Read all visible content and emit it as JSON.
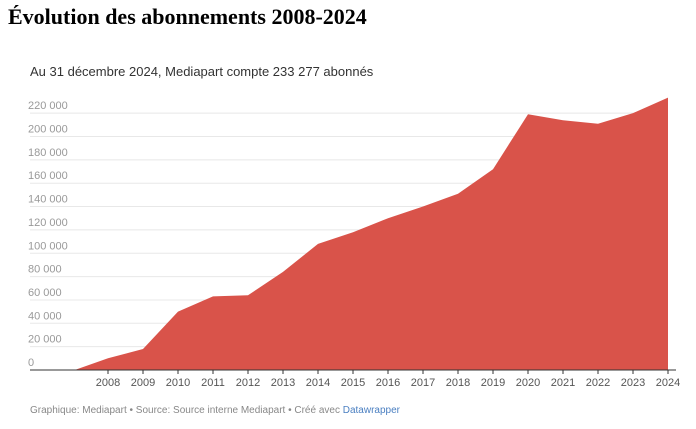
{
  "title": "Évolution des abonnements 2008-2024",
  "subtitle": "Au 31 décembre 2024, Mediapart compte 233 277 abonnés",
  "footer": {
    "text": "Graphique: Mediapart • Source: Source interne Mediapart • Créé avec ",
    "link": "Datawrapper"
  },
  "chart_data": {
    "type": "area",
    "title": "Évolution des abonnements 2008-2024",
    "subtitle": "Au 31 décembre 2024, Mediapart compte 233 277 abonnés",
    "xlabel": "",
    "ylabel": "",
    "x": [
      2007.05,
      2008,
      2009,
      2010,
      2011,
      2012,
      2013,
      2014,
      2015,
      2016,
      2017,
      2018,
      2019,
      2020,
      2021,
      2022,
      2023,
      2024
    ],
    "values": [
      0,
      10000,
      18000,
      50000,
      63000,
      64000,
      84000,
      108000,
      118000,
      130000,
      140000,
      151000,
      172000,
      219000,
      214000,
      211000,
      220000,
      233277
    ],
    "x_ticks": [
      "2008",
      "2009",
      "2010",
      "2011",
      "2012",
      "2013",
      "2014",
      "2015",
      "2016",
      "2017",
      "2018",
      "2019",
      "2020",
      "2021",
      "2022",
      "2023",
      "2024"
    ],
    "y_ticks": [
      "0",
      "20 000",
      "40 000",
      "60 000",
      "80 000",
      "100 000",
      "120 000",
      "140 000",
      "160 000",
      "180 000",
      "200 000",
      "220 000"
    ],
    "ylim": [
      0,
      230000
    ],
    "grid": true,
    "color": "#d9534a"
  }
}
